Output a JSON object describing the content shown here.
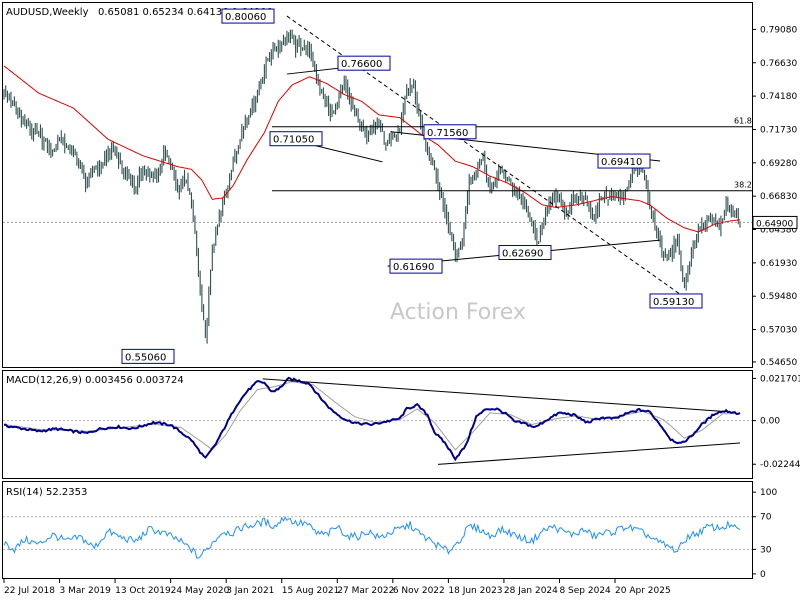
{
  "header": {
    "symbol": "AUDUSD,Weekly",
    "ohlc": "0.65081 0.65234 0.64136 0.64900"
  },
  "watermark": "Action Forex",
  "colors": {
    "price": "#2f4f4f",
    "ma": "#e00000",
    "macd": "#00008b",
    "signal": "#a0a0a0",
    "rsi": "#1e90ff",
    "label_border": "#0000a0",
    "trend": "#000000"
  },
  "chart_data": [
    {
      "type": "line",
      "name": "price",
      "ylim": [
        0.545,
        0.808
      ],
      "yticks": [
        "0.79080",
        "0.76630",
        "0.74180",
        "0.71730",
        "0.69280",
        "0.66830",
        "0.64380",
        "0.61930",
        "0.59480",
        "0.57030",
        "0.54650"
      ],
      "ytick_values": [
        0.7908,
        0.7663,
        0.7418,
        0.7173,
        0.6928,
        0.6683,
        0.6438,
        0.6193,
        0.5948,
        0.5703,
        0.5465
      ],
      "current_price_label": "0.64900",
      "current_price": 0.649,
      "fib_levels": [
        {
          "label": "61.8",
          "value": 0.7193
        },
        {
          "label": "38.2",
          "value": 0.6723
        }
      ],
      "price_labels": [
        {
          "text": "0.80060",
          "value": 0.8006
        },
        {
          "text": "0.76600",
          "value": 0.766
        },
        {
          "text": "0.71050",
          "value": 0.7105
        },
        {
          "text": "0.71560",
          "value": 0.7156
        },
        {
          "text": "0.69410",
          "value": 0.6941
        },
        {
          "text": "0.61690",
          "value": 0.6169
        },
        {
          "text": "0.62690",
          "value": 0.6269
        },
        {
          "text": "0.59130",
          "value": 0.5913
        },
        {
          "text": "0.55060",
          "value": 0.5506
        }
      ],
      "close_keypoints": [
        [
          0,
          0.745
        ],
        [
          4,
          0.738
        ],
        [
          8,
          0.728
        ],
        [
          12,
          0.722
        ],
        [
          16,
          0.716
        ],
        [
          20,
          0.713
        ],
        [
          24,
          0.706
        ],
        [
          28,
          0.7
        ],
        [
          32,
          0.712
        ],
        [
          36,
          0.704
        ],
        [
          40,
          0.7
        ],
        [
          44,
          0.69
        ],
        [
          48,
          0.676
        ],
        [
          52,
          0.69
        ],
        [
          56,
          0.69
        ],
        [
          60,
          0.7
        ],
        [
          64,
          0.702
        ],
        [
          68,
          0.688
        ],
        [
          72,
          0.682
        ],
        [
          76,
          0.674
        ],
        [
          80,
          0.69
        ],
        [
          84,
          0.681
        ],
        [
          88,
          0.684
        ],
        [
          92,
          0.7
        ],
        [
          96,
          0.692
        ],
        [
          100,
          0.672
        ],
        [
          104,
          0.682
        ],
        [
          108,
          0.664
        ],
        [
          112,
          0.612
        ],
        [
          116,
          0.562
        ],
        [
          120,
          0.628
        ],
        [
          124,
          0.652
        ],
        [
          128,
          0.672
        ],
        [
          132,
          0.693
        ],
        [
          136,
          0.712
        ],
        [
          140,
          0.727
        ],
        [
          144,
          0.737
        ],
        [
          148,
          0.752
        ],
        [
          152,
          0.77
        ],
        [
          156,
          0.776
        ],
        [
          160,
          0.781
        ],
        [
          164,
          0.788
        ],
        [
          168,
          0.778
        ],
        [
          172,
          0.779
        ],
        [
          176,
          0.775
        ],
        [
          180,
          0.755
        ],
        [
          184,
          0.742
        ],
        [
          188,
          0.728
        ],
        [
          192,
          0.735
        ],
        [
          196,
          0.751
        ],
        [
          200,
          0.735
        ],
        [
          204,
          0.725
        ],
        [
          208,
          0.712
        ],
        [
          212,
          0.72
        ],
        [
          216,
          0.722
        ],
        [
          220,
          0.704
        ],
        [
          224,
          0.71
        ],
        [
          228,
          0.718
        ],
        [
          232,
          0.748
        ],
        [
          236,
          0.748
        ],
        [
          240,
          0.72
        ],
        [
          244,
          0.7
        ],
        [
          248,
          0.69
        ],
        [
          252,
          0.668
        ],
        [
          256,
          0.648
        ],
        [
          260,
          0.622
        ],
        [
          264,
          0.635
        ],
        [
          268,
          0.68
        ],
        [
          272,
          0.688
        ],
        [
          276,
          0.698
        ],
        [
          280,
          0.672
        ],
        [
          284,
          0.685
        ],
        [
          288,
          0.686
        ],
        [
          292,
          0.676
        ],
        [
          296,
          0.67
        ],
        [
          300,
          0.662
        ],
        [
          304,
          0.648
        ],
        [
          308,
          0.632
        ],
        [
          312,
          0.66
        ],
        [
          316,
          0.665
        ],
        [
          320,
          0.668
        ],
        [
          324,
          0.655
        ],
        [
          328,
          0.665
        ],
        [
          332,
          0.668
        ],
        [
          336,
          0.665
        ],
        [
          340,
          0.65
        ],
        [
          344,
          0.668
        ],
        [
          348,
          0.668
        ],
        [
          352,
          0.67
        ],
        [
          356,
          0.666
        ],
        [
          360,
          0.678
        ],
        [
          364,
          0.69
        ],
        [
          368,
          0.685
        ],
        [
          372,
          0.66
        ],
        [
          376,
          0.64
        ],
        [
          380,
          0.625
        ],
        [
          384,
          0.625
        ],
        [
          388,
          0.638
        ],
        [
          392,
          0.6
        ],
        [
          396,
          0.625
        ],
        [
          400,
          0.643
        ],
        [
          404,
          0.65
        ],
        [
          408,
          0.652
        ],
        [
          412,
          0.646
        ],
        [
          416,
          0.66
        ],
        [
          420,
          0.658
        ],
        [
          424,
          0.649
        ]
      ],
      "ma_keypoints": [
        [
          0,
          0.764
        ],
        [
          8,
          0.756
        ],
        [
          20,
          0.744
        ],
        [
          40,
          0.733
        ],
        [
          60,
          0.71
        ],
        [
          80,
          0.698
        ],
        [
          100,
          0.69
        ],
        [
          108,
          0.688
        ],
        [
          114,
          0.68
        ],
        [
          120,
          0.666
        ],
        [
          126,
          0.667
        ],
        [
          132,
          0.676
        ],
        [
          140,
          0.695
        ],
        [
          150,
          0.715
        ],
        [
          158,
          0.738
        ],
        [
          166,
          0.75
        ],
        [
          176,
          0.756
        ],
        [
          186,
          0.751
        ],
        [
          196,
          0.743
        ],
        [
          206,
          0.738
        ],
        [
          216,
          0.728
        ],
        [
          228,
          0.726
        ],
        [
          240,
          0.714
        ],
        [
          250,
          0.706
        ],
        [
          260,
          0.694
        ],
        [
          270,
          0.69
        ],
        [
          280,
          0.683
        ],
        [
          290,
          0.678
        ],
        [
          300,
          0.671
        ],
        [
          310,
          0.662
        ],
        [
          318,
          0.66
        ],
        [
          330,
          0.662
        ],
        [
          340,
          0.665
        ],
        [
          350,
          0.668
        ],
        [
          360,
          0.666
        ],
        [
          366,
          0.665
        ],
        [
          372,
          0.662
        ],
        [
          382,
          0.652
        ],
        [
          392,
          0.645
        ],
        [
          400,
          0.642
        ],
        [
          410,
          0.648
        ],
        [
          418,
          0.65
        ],
        [
          424,
          0.651
        ]
      ]
    },
    {
      "type": "line",
      "name": "MACD(12,26,9) 0.003456 0.003724",
      "ylim": [
        -0.0285,
        0.0245
      ],
      "yticks": [
        "0.021701",
        "0.00",
        "-0.022445"
      ],
      "ytick_values": [
        0.021701,
        0,
        -0.022445
      ],
      "macd_keypoints": [
        [
          0,
          -0.0025
        ],
        [
          10,
          -0.004
        ],
        [
          20,
          -0.0055
        ],
        [
          30,
          -0.0042
        ],
        [
          40,
          -0.0055
        ],
        [
          48,
          -0.0065
        ],
        [
          56,
          -0.004
        ],
        [
          66,
          -0.0032
        ],
        [
          74,
          -0.0042
        ],
        [
          86,
          -0.001
        ],
        [
          96,
          -0.0022
        ],
        [
          102,
          -0.006
        ],
        [
          108,
          -0.01
        ],
        [
          112,
          -0.015
        ],
        [
          116,
          -0.0195
        ],
        [
          122,
          -0.012
        ],
        [
          128,
          -0.002
        ],
        [
          134,
          0.008
        ],
        [
          140,
          0.015
        ],
        [
          146,
          0.02
        ],
        [
          150,
          0.0195
        ],
        [
          154,
          0.015
        ],
        [
          158,
          0.016
        ],
        [
          164,
          0.0215
        ],
        [
          170,
          0.0205
        ],
        [
          176,
          0.019
        ],
        [
          182,
          0.012
        ],
        [
          188,
          0.006
        ],
        [
          194,
          0.002
        ],
        [
          198,
          0.0
        ],
        [
          204,
          -0.0015
        ],
        [
          212,
          -0.002
        ],
        [
          220,
          -0.0005
        ],
        [
          228,
          0.001
        ],
        [
          232,
          0.006
        ],
        [
          238,
          0.008
        ],
        [
          244,
          0.003
        ],
        [
          248,
          -0.006
        ],
        [
          254,
          -0.0115
        ],
        [
          260,
          -0.0195
        ],
        [
          266,
          -0.013
        ],
        [
          272,
          0.002
        ],
        [
          278,
          0.006
        ],
        [
          284,
          0.006
        ],
        [
          290,
          0.003
        ],
        [
          294,
          -0.0005
        ],
        [
          300,
          -0.0015
        ],
        [
          306,
          -0.0035
        ],
        [
          312,
          0.0
        ],
        [
          320,
          0.004
        ],
        [
          328,
          0.003
        ],
        [
          336,
          -0.001
        ],
        [
          344,
          0.0015
        ],
        [
          352,
          0.001
        ],
        [
          360,
          0.004
        ],
        [
          366,
          0.0055
        ],
        [
          372,
          0.0045
        ],
        [
          378,
          -0.002
        ],
        [
          384,
          -0.0095
        ],
        [
          390,
          -0.012
        ],
        [
          396,
          -0.008
        ],
        [
          402,
          -0.002
        ],
        [
          410,
          0.004
        ],
        [
          416,
          0.005
        ],
        [
          424,
          0.0035
        ]
      ],
      "signal_keypoints": [
        [
          0,
          -0.002
        ],
        [
          20,
          -0.0045
        ],
        [
          48,
          -0.0055
        ],
        [
          66,
          -0.0038
        ],
        [
          86,
          -0.0018
        ],
        [
          102,
          -0.0035
        ],
        [
          114,
          -0.011
        ],
        [
          120,
          -0.015
        ],
        [
          128,
          -0.007
        ],
        [
          136,
          0.005
        ],
        [
          146,
          0.016
        ],
        [
          156,
          0.0175
        ],
        [
          166,
          0.02
        ],
        [
          178,
          0.0185
        ],
        [
          190,
          0.01
        ],
        [
          202,
          0.002
        ],
        [
          214,
          -0.001
        ],
        [
          228,
          0.0005
        ],
        [
          238,
          0.006
        ],
        [
          248,
          -0.001
        ],
        [
          260,
          -0.015
        ],
        [
          270,
          -0.006
        ],
        [
          280,
          0.004
        ],
        [
          292,
          0.003
        ],
        [
          304,
          -0.002
        ],
        [
          318,
          0.001
        ],
        [
          330,
          0.0025
        ],
        [
          342,
          0.0005
        ],
        [
          356,
          0.0025
        ],
        [
          368,
          0.0048
        ],
        [
          380,
          0.0005
        ],
        [
          392,
          -0.009
        ],
        [
          402,
          -0.005
        ],
        [
          414,
          0.0035
        ],
        [
          424,
          0.0037
        ]
      ]
    },
    {
      "type": "line",
      "name": "RSI(14) 52.2353",
      "ylim": [
        -5,
        110
      ],
      "yticks": [
        "100",
        "70",
        "30",
        "0"
      ],
      "ytick_values": [
        100,
        70,
        30,
        0
      ],
      "rsi_keypoints": [
        [
          0,
          38
        ],
        [
          6,
          30
        ],
        [
          12,
          42
        ],
        [
          20,
          36
        ],
        [
          28,
          48
        ],
        [
          36,
          40
        ],
        [
          44,
          45
        ],
        [
          52,
          32
        ],
        [
          60,
          52
        ],
        [
          68,
          44
        ],
        [
          76,
          40
        ],
        [
          84,
          55
        ],
        [
          92,
          50
        ],
        [
          100,
          42
        ],
        [
          108,
          30
        ],
        [
          112,
          20
        ],
        [
          116,
          28
        ],
        [
          120,
          38
        ],
        [
          126,
          52
        ],
        [
          132,
          50
        ],
        [
          138,
          58
        ],
        [
          144,
          60
        ],
        [
          150,
          64
        ],
        [
          156,
          58
        ],
        [
          162,
          70
        ],
        [
          168,
          62
        ],
        [
          174,
          62
        ],
        [
          180,
          50
        ],
        [
          186,
          48
        ],
        [
          192,
          58
        ],
        [
          198,
          46
        ],
        [
          204,
          46
        ],
        [
          210,
          52
        ],
        [
          216,
          44
        ],
        [
          222,
          50
        ],
        [
          228,
          55
        ],
        [
          234,
          60
        ],
        [
          240,
          48
        ],
        [
          246,
          40
        ],
        [
          252,
          32
        ],
        [
          256,
          28
        ],
        [
          262,
          40
        ],
        [
          268,
          58
        ],
        [
          274,
          55
        ],
        [
          280,
          46
        ],
        [
          286,
          54
        ],
        [
          292,
          50
        ],
        [
          298,
          44
        ],
        [
          304,
          40
        ],
        [
          310,
          52
        ],
        [
          316,
          58
        ],
        [
          322,
          52
        ],
        [
          328,
          48
        ],
        [
          334,
          54
        ],
        [
          340,
          46
        ],
        [
          346,
          50
        ],
        [
          352,
          52
        ],
        [
          358,
          58
        ],
        [
          364,
          54
        ],
        [
          370,
          48
        ],
        [
          376,
          40
        ],
        [
          382,
          34
        ],
        [
          388,
          28
        ],
        [
          394,
          46
        ],
        [
          400,
          50
        ],
        [
          406,
          58
        ],
        [
          412,
          56
        ],
        [
          418,
          60
        ],
        [
          424,
          52
        ]
      ]
    }
  ],
  "x_axis": {
    "labels": [
      "22 Jul 2018",
      "3 Mar 2019",
      "13 Oct 2019",
      "24 May 2020",
      "3 Jan 2021",
      "15 Aug 2021",
      "27 Mar 2022",
      "6 Nov 2022",
      "18 Jun 2023",
      "28 Jan 2024",
      "8 Sep 2024",
      "20 Apr 2025"
    ],
    "bar_index": [
      0,
      32,
      64,
      96,
      128,
      160,
      192,
      224,
      256,
      288,
      320,
      352
    ]
  },
  "x_range": [
    0,
    424
  ]
}
